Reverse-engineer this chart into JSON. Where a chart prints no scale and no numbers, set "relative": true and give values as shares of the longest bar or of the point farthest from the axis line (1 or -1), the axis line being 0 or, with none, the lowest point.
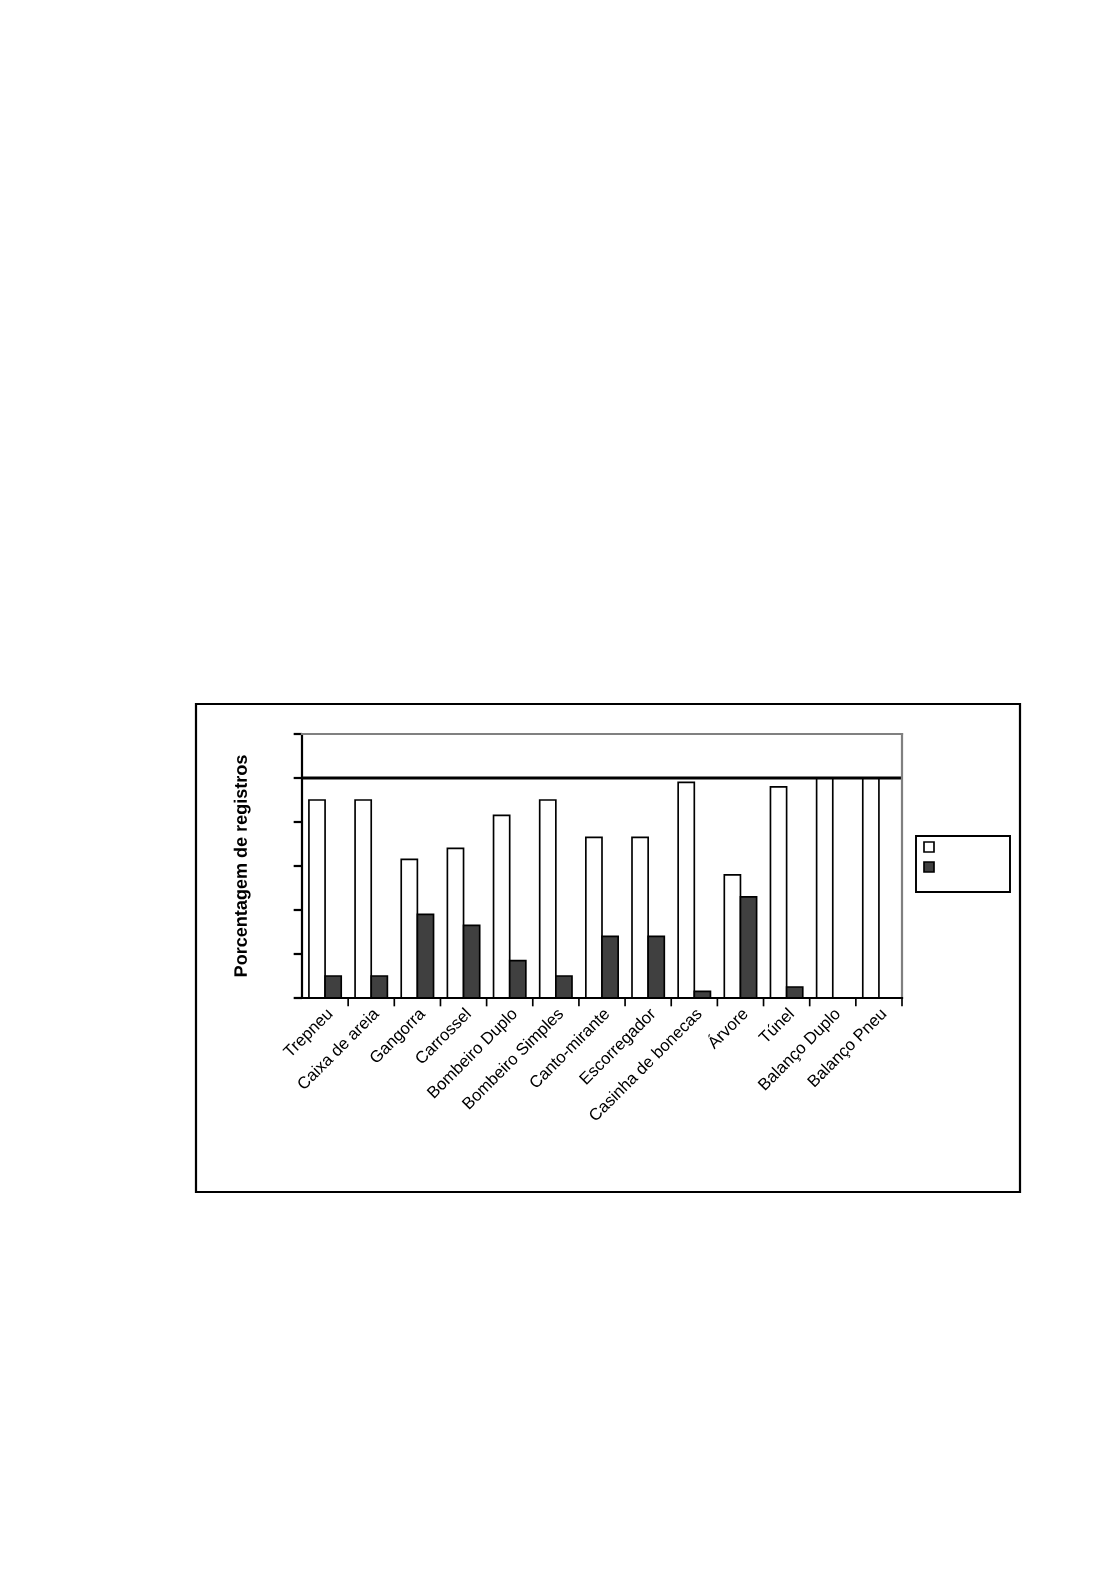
{
  "chart_data": {
    "type": "bar",
    "ylabel": "Porcentagem de registros",
    "relative": true,
    "categories": [
      "Trepneu",
      "Caixa de areia",
      "Gangorra",
      "Carrossel",
      "Bombeiro Duplo",
      "Bombeiro Simples",
      "Canto-mirante",
      "Escorregador",
      "Casinha de bonecas",
      "Árvore",
      "Túnel",
      "Balanço Duplo",
      "Balanço Pneu"
    ],
    "series": [
      {
        "color": "#ffffff",
        "values": [
          0.9,
          0.9,
          0.63,
          0.68,
          0.83,
          0.9,
          0.73,
          0.73,
          0.98,
          0.56,
          0.96,
          1,
          1
        ]
      },
      {
        "color": "#404040",
        "values": [
          0.1,
          0.1,
          0.38,
          0.33,
          0.17,
          0.1,
          0.28,
          0.28,
          0.03,
          0.46,
          0.05,
          0,
          0
        ]
      }
    ],
    "ref_lines": [
      {
        "axis": "y",
        "value": 1,
        "color": "#000000"
      }
    ],
    "grid": false
  }
}
